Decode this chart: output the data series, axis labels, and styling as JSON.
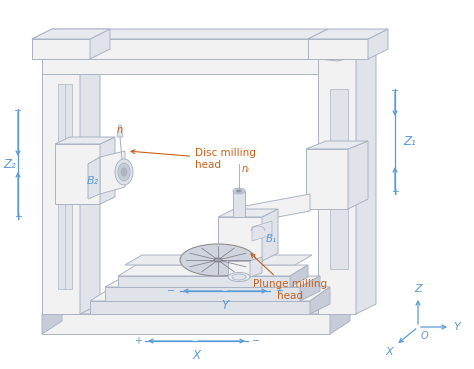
{
  "bg_color": "#ffffff",
  "line_color": "#aab4c4",
  "blue_color": "#5b9bd5",
  "orange_color": "#c8621a",
  "face_light": "#f2f2f2",
  "face_mid": "#e0e4ea",
  "face_dark": "#c8ccd8",
  "face_top": "#e8eaf0",
  "labels": {
    "plunge": "Plunge milling\nhead",
    "disc": "Disc milling\nhead",
    "B1": "B₁",
    "B2": "B₂",
    "n1": "nᵢ",
    "n2": "n",
    "Z1": "Z₁",
    "Z2": "Z₂",
    "X": "X",
    "Y": "Y",
    "Z": "Z",
    "O": "O"
  },
  "figsize": [
    4.74,
    3.69
  ],
  "dpi": 100
}
